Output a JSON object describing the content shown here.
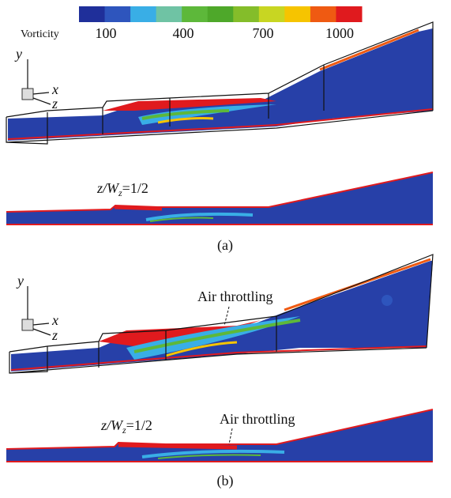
{
  "colorbar": {
    "label": "Vorticity",
    "ticks": [
      "100",
      "400",
      "700",
      "1000"
    ],
    "colors": [
      "#1f2f9a",
      "#2e55bd",
      "#39aee6",
      "#6fc3a4",
      "#5db83a",
      "#4ea82a",
      "#84bd2a",
      "#c8d622",
      "#f6c400",
      "#ef5a12",
      "#e01a1e"
    ]
  },
  "panels": [
    {
      "axes": {
        "y": "y",
        "x": "x",
        "z": "z"
      },
      "slice_label": {
        "main": "z/W",
        "sub": "z",
        "rest": "=1/2"
      },
      "caption": "(a)"
    },
    {
      "axes": {
        "y": "y",
        "x": "x",
        "z": "z"
      },
      "annotation": "Air throttling",
      "slice_label": {
        "main": "z/W",
        "sub": "z",
        "rest": "=1/2"
      },
      "slice_annotation": "Air throttling",
      "caption": "(b)"
    }
  ]
}
